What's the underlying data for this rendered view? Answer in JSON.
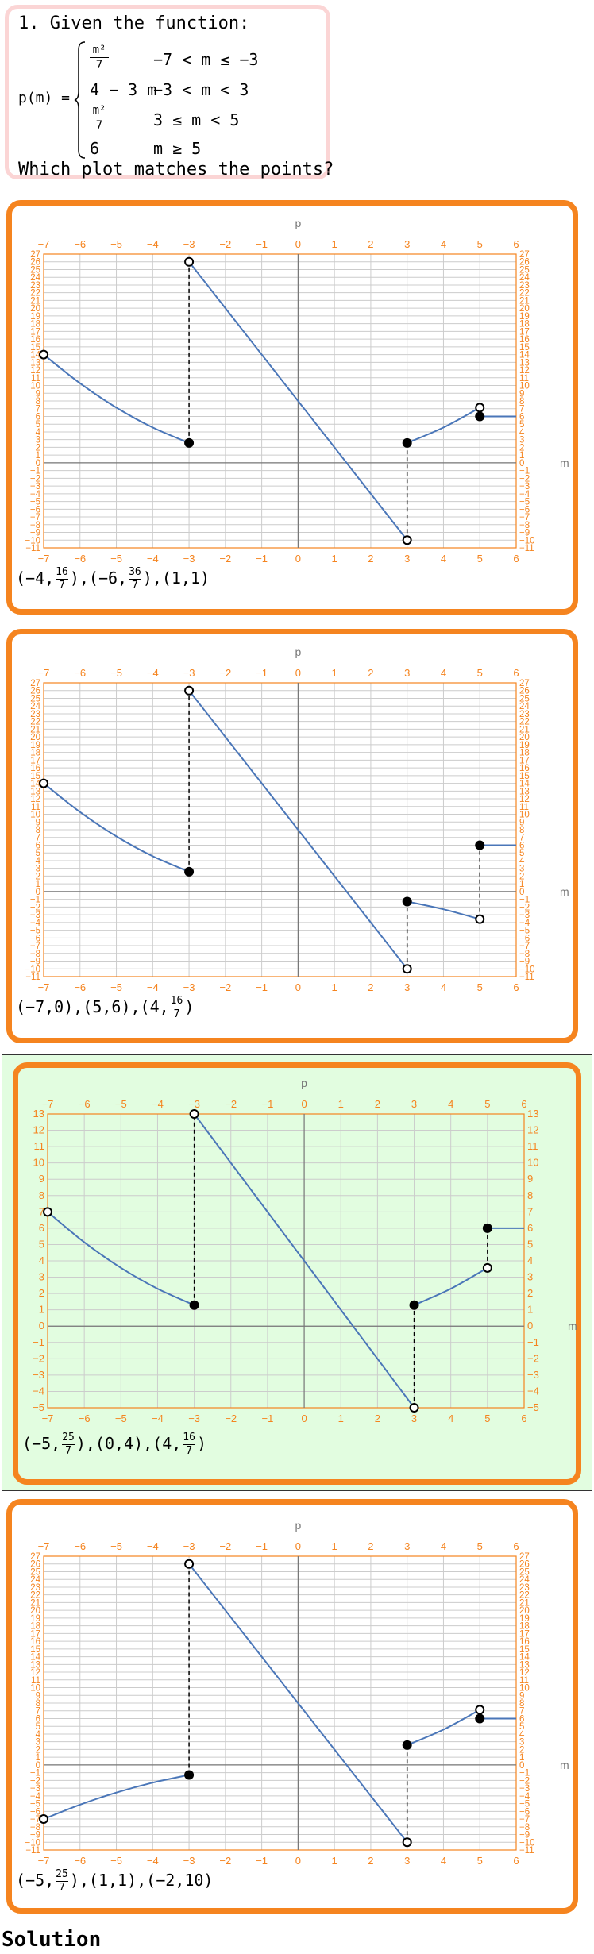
{
  "question": {
    "title": "1. Given the function:",
    "func_name": "p(m) =",
    "cases": [
      {
        "expr_num": "m²",
        "expr_den": "7",
        "cond": "−7 < m ≤ −3"
      },
      {
        "expr": "4 − 3 m",
        "cond": "−3 < m < 3"
      },
      {
        "expr_num": "m²",
        "expr_den": "7",
        "cond": "3 ≤ m < 5"
      },
      {
        "expr": "6",
        "cond": "m ≥ 5"
      }
    ],
    "prompt": "Which plot matches the points?"
  },
  "colors": {
    "accent": "#f5841f",
    "selected_bg": "#e2fde0",
    "curve": "#4a76b8",
    "grid": "#cccccc",
    "question_border": "#fbd5d5"
  },
  "options": [
    {
      "selected": false,
      "points": [
        {
          "a": "−4",
          "num": "16",
          "den": "7"
        },
        {
          "a": "−6",
          "num": "36",
          "den": "7"
        },
        {
          "a": "1",
          "b": "1"
        }
      ],
      "chart_data": {
        "type": "line",
        "xlabel": "m",
        "ylabel": "p",
        "xlim": [
          -7,
          6
        ],
        "ylim": [
          -11,
          27
        ],
        "xticks": [
          "−7",
          "−6",
          "−5",
          "−4",
          "−3",
          "−2",
          "−1",
          "0",
          "1",
          "2",
          "3",
          "4",
          "5",
          "6"
        ],
        "yticks": [
          "−11",
          "−10",
          "−9",
          "−8",
          "−7",
          "−6",
          "−5",
          "−4",
          "−3",
          "−2",
          "−1",
          "0",
          "1",
          "2",
          "3",
          "4",
          "5",
          "6",
          "7",
          "8",
          "9",
          "10",
          "11",
          "12",
          "13",
          "14",
          "15",
          "16",
          "17",
          "18",
          "19",
          "20",
          "21",
          "22",
          "23",
          "24",
          "25",
          "26",
          "27"
        ],
        "series": [
          {
            "x": [
              -7,
              -6,
              -5,
              -4,
              -3
            ],
            "y": [
              14,
              10.29,
              7.14,
              4.57,
              2.57
            ]
          },
          {
            "x": [
              -3,
              3
            ],
            "y": [
              26,
              -10
            ]
          },
          {
            "x": [
              3,
              4,
              5
            ],
            "y": [
              2.57,
              4.57,
              7.14
            ]
          },
          {
            "x": [
              5,
              6
            ],
            "y": [
              6,
              6
            ]
          }
        ],
        "open_points": [
          [
            -7,
            14
          ],
          [
            -3,
            26
          ],
          [
            3,
            -10
          ],
          [
            5,
            7.14
          ]
        ],
        "closed_points": [
          [
            -3,
            2.57
          ],
          [
            3,
            2.57
          ],
          [
            5,
            6
          ]
        ],
        "dashed": [
          [
            -3,
            2.57,
            -3,
            26
          ],
          [
            3,
            -10,
            3,
            2.57
          ]
        ]
      }
    },
    {
      "selected": false,
      "points": [
        {
          "a": "−7",
          "b": "0"
        },
        {
          "a": "5",
          "b": "6"
        },
        {
          "a": "4",
          "num": "16",
          "den": "7"
        }
      ],
      "chart_data": {
        "type": "line",
        "xlabel": "m",
        "ylabel": "p",
        "xlim": [
          -7,
          6
        ],
        "ylim": [
          -11,
          27
        ],
        "xticks": [
          "−7",
          "−6",
          "−5",
          "−4",
          "−3",
          "−2",
          "−1",
          "0",
          "1",
          "2",
          "3",
          "4",
          "5",
          "6"
        ],
        "yticks": [
          "−11",
          "−10",
          "−9",
          "−8",
          "−7",
          "−6",
          "−5",
          "−4",
          "−3",
          "−2",
          "−1",
          "0",
          "1",
          "2",
          "3",
          "4",
          "5",
          "6",
          "7",
          "8",
          "9",
          "10",
          "11",
          "12",
          "13",
          "14",
          "15",
          "16",
          "17",
          "18",
          "19",
          "20",
          "21",
          "22",
          "23",
          "24",
          "25",
          "26",
          "27"
        ],
        "series": [
          {
            "x": [
              -7,
              -6,
              -5,
              -4,
              -3
            ],
            "y": [
              14,
              10.29,
              7.14,
              4.57,
              2.57
            ]
          },
          {
            "x": [
              -3,
              3
            ],
            "y": [
              26,
              -10
            ]
          },
          {
            "x": [
              3,
              4,
              5
            ],
            "y": [
              -1.29,
              -2.29,
              -3.57
            ]
          },
          {
            "x": [
              5,
              6
            ],
            "y": [
              6,
              6
            ]
          }
        ],
        "open_points": [
          [
            -7,
            14
          ],
          [
            -3,
            26
          ],
          [
            3,
            -10
          ],
          [
            5,
            -3.57
          ]
        ],
        "closed_points": [
          [
            -3,
            2.57
          ],
          [
            3,
            -1.29
          ],
          [
            5,
            6
          ]
        ],
        "dashed": [
          [
            -3,
            2.57,
            -3,
            26
          ],
          [
            3,
            -10,
            3,
            -1.29
          ],
          [
            5,
            -3.57,
            5,
            6
          ]
        ]
      }
    },
    {
      "selected": true,
      "points": [
        {
          "a": "−5",
          "num": "25",
          "den": "7"
        },
        {
          "a": "0",
          "b": "4"
        },
        {
          "a": "4",
          "num": "16",
          "den": "7"
        }
      ],
      "chart_data": {
        "type": "line",
        "xlabel": "m",
        "ylabel": "p",
        "xlim": [
          -7,
          6
        ],
        "ylim": [
          -5,
          13
        ],
        "xticks": [
          "−7",
          "−6",
          "−5",
          "−4",
          "−3",
          "−2",
          "−1",
          "0",
          "1",
          "2",
          "3",
          "4",
          "5",
          "6"
        ],
        "yticks": [
          "−5",
          "−4",
          "−3",
          "−2",
          "−1",
          "0",
          "1",
          "2",
          "3",
          "4",
          "5",
          "6",
          "7",
          "8",
          "9",
          "10",
          "11",
          "12",
          "13"
        ],
        "series": [
          {
            "x": [
              -7,
              -6,
              -5,
              -4,
              -3
            ],
            "y": [
              7,
              5.14,
              3.57,
              2.29,
              1.29
            ]
          },
          {
            "x": [
              -3,
              3
            ],
            "y": [
              13,
              -5
            ]
          },
          {
            "x": [
              3,
              4,
              5
            ],
            "y": [
              1.29,
              2.29,
              3.57
            ]
          },
          {
            "x": [
              5,
              6
            ],
            "y": [
              6,
              6
            ]
          }
        ],
        "open_points": [
          [
            -7,
            7
          ],
          [
            -3,
            13
          ],
          [
            3,
            -5
          ],
          [
            5,
            3.57
          ]
        ],
        "closed_points": [
          [
            -3,
            1.29
          ],
          [
            3,
            1.29
          ],
          [
            5,
            6
          ]
        ],
        "dashed": [
          [
            -3,
            1.29,
            -3,
            13
          ],
          [
            3,
            -5,
            3,
            1.29
          ],
          [
            5,
            3.57,
            5,
            6
          ]
        ]
      }
    },
    {
      "selected": false,
      "points": [
        {
          "a": "−5",
          "num": "25",
          "den": "7"
        },
        {
          "a": "1",
          "b": "1"
        },
        {
          "a": "−2",
          "b": "10"
        }
      ],
      "chart_data": {
        "type": "line",
        "xlabel": "m",
        "ylabel": "p",
        "xlim": [
          -7,
          6
        ],
        "ylim": [
          -11,
          27
        ],
        "xticks": [
          "−7",
          "−6",
          "−5",
          "−4",
          "−3",
          "−2",
          "−1",
          "0",
          "1",
          "2",
          "3",
          "4",
          "5",
          "6"
        ],
        "yticks": [
          "−11",
          "−10",
          "−9",
          "−8",
          "−7",
          "−6",
          "−5",
          "−4",
          "−3",
          "−2",
          "−1",
          "0",
          "1",
          "2",
          "3",
          "4",
          "5",
          "6",
          "7",
          "8",
          "9",
          "10",
          "11",
          "12",
          "13",
          "14",
          "15",
          "16",
          "17",
          "18",
          "19",
          "20",
          "21",
          "22",
          "23",
          "24",
          "25",
          "26",
          "27"
        ],
        "series": [
          {
            "x": [
              -7,
              -6,
              -5,
              -4,
              -3
            ],
            "y": [
              -7,
              -5.14,
              -3.57,
              -2.29,
              -1.29
            ]
          },
          {
            "x": [
              -3,
              3
            ],
            "y": [
              26,
              -10
            ]
          },
          {
            "x": [
              3,
              4,
              5
            ],
            "y": [
              2.57,
              4.57,
              7.14
            ]
          },
          {
            "x": [
              5,
              6
            ],
            "y": [
              6,
              6
            ]
          }
        ],
        "open_points": [
          [
            -7,
            -7
          ],
          [
            -3,
            26
          ],
          [
            3,
            -10
          ],
          [
            5,
            7.14
          ]
        ],
        "closed_points": [
          [
            -3,
            -1.29
          ],
          [
            3,
            2.57
          ],
          [
            5,
            6
          ]
        ],
        "dashed": [
          [
            -3,
            -1.29,
            -3,
            26
          ],
          [
            3,
            -10,
            3,
            2.57
          ],
          [
            5,
            6,
            5,
            7.14
          ]
        ]
      }
    }
  ],
  "solution_label": "Solution"
}
